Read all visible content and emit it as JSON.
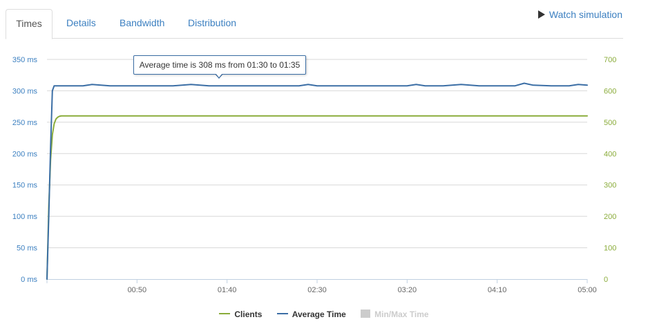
{
  "tabs": [
    {
      "label": "Times",
      "active": true
    },
    {
      "label": "Details",
      "active": false
    },
    {
      "label": "Bandwidth",
      "active": false
    },
    {
      "label": "Distribution",
      "active": false
    }
  ],
  "watch_simulation_label": "Watch simulation",
  "tooltip_text": "Average time is 308 ms from 01:30 to 01:35",
  "colors": {
    "average_time": "#3b6ea5",
    "clients": "#8aac3a",
    "min_max": "#cccccc",
    "grid": "#d8d8d8",
    "axis_left": "#3b7fc0",
    "axis_right": "#8aac3a"
  },
  "legend": [
    {
      "label": "Clients",
      "color": "#8aac3a",
      "kind": "line",
      "dimmed": false
    },
    {
      "label": "Average Time",
      "color": "#3b6ea5",
      "kind": "line",
      "dimmed": false
    },
    {
      "label": "Min/Max Time",
      "color": "#cccccc",
      "kind": "box",
      "dimmed": true
    }
  ],
  "chart_data": {
    "type": "line",
    "title": "",
    "xlabel": "",
    "xlim_seconds": [
      0,
      300
    ],
    "x_ticks": [
      "00:50",
      "01:40",
      "02:30",
      "03:20",
      "04:10",
      "05:00"
    ],
    "x_tick_seconds": [
      50,
      100,
      150,
      200,
      250,
      300
    ],
    "y_left": {
      "label": "",
      "ylim": [
        0,
        350
      ],
      "ticks": [
        "0 ms",
        "50 ms",
        "100 ms",
        "150 ms",
        "200 ms",
        "250 ms",
        "300 ms",
        "350 ms"
      ],
      "tick_values": [
        0,
        50,
        100,
        150,
        200,
        250,
        300,
        350
      ]
    },
    "y_right": {
      "label": "",
      "ylim": [
        0,
        700
      ],
      "ticks": [
        "0",
        "100",
        "200",
        "300",
        "400",
        "500",
        "600",
        "700"
      ],
      "tick_values": [
        0,
        100,
        200,
        300,
        400,
        500,
        600,
        700
      ]
    },
    "grid": true,
    "legend_position": "bottom",
    "series": [
      {
        "name": "Average Time",
        "axis": "left",
        "x": [
          0,
          1,
          2,
          3,
          4,
          5,
          8,
          15,
          20,
          25,
          35,
          50,
          70,
          80,
          90,
          110,
          130,
          140,
          145,
          150,
          170,
          190,
          200,
          205,
          210,
          220,
          230,
          240,
          250,
          260,
          265,
          270,
          280,
          290,
          295,
          300
        ],
        "y": [
          0,
          100,
          210,
          300,
          308,
          308,
          308,
          308,
          308,
          310,
          308,
          308,
          308,
          310,
          308,
          308,
          308,
          308,
          310,
          308,
          308,
          308,
          308,
          310,
          308,
          308,
          310,
          308,
          308,
          308,
          312,
          309,
          308,
          308,
          310,
          309
        ]
      },
      {
        "name": "Clients",
        "axis": "right",
        "x": [
          0,
          1,
          2,
          3,
          4,
          5,
          6,
          7,
          8,
          10,
          20,
          50,
          100,
          150,
          200,
          250,
          300
        ],
        "y": [
          0,
          230,
          380,
          460,
          495,
          510,
          516,
          519,
          520,
          520,
          520,
          520,
          520,
          520,
          520,
          520,
          520
        ]
      }
    ]
  }
}
